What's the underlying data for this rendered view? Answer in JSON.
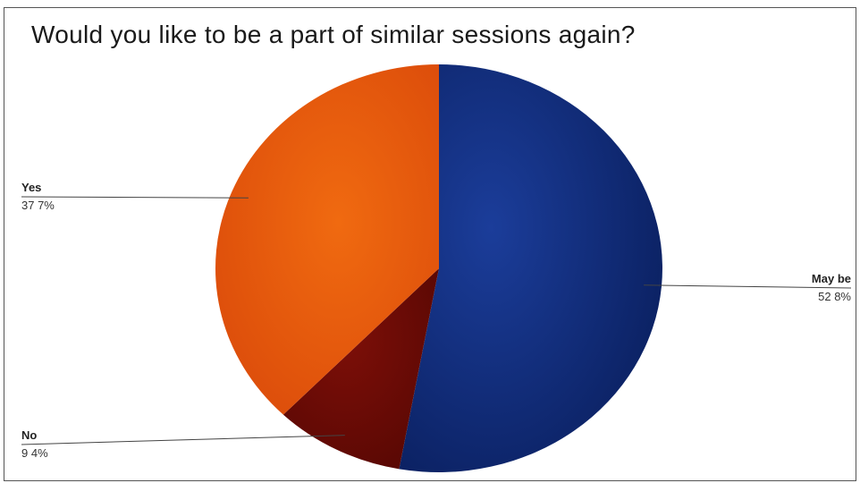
{
  "chart_data": {
    "type": "pie",
    "title": "Would you like to be a part of similar sessions again?",
    "slices": [
      {
        "label": "May be",
        "value": 52.8,
        "value_label": "52 8%",
        "color": "#0d2a78"
      },
      {
        "label": "No",
        "value": 9.4,
        "value_label": "9 4%",
        "color": "#6a0a06"
      },
      {
        "label": "Yes",
        "value": 37.7,
        "value_label": "37 7%",
        "color": "#e35208"
      }
    ],
    "start": "12 o'clock",
    "direction": "clockwise"
  }
}
